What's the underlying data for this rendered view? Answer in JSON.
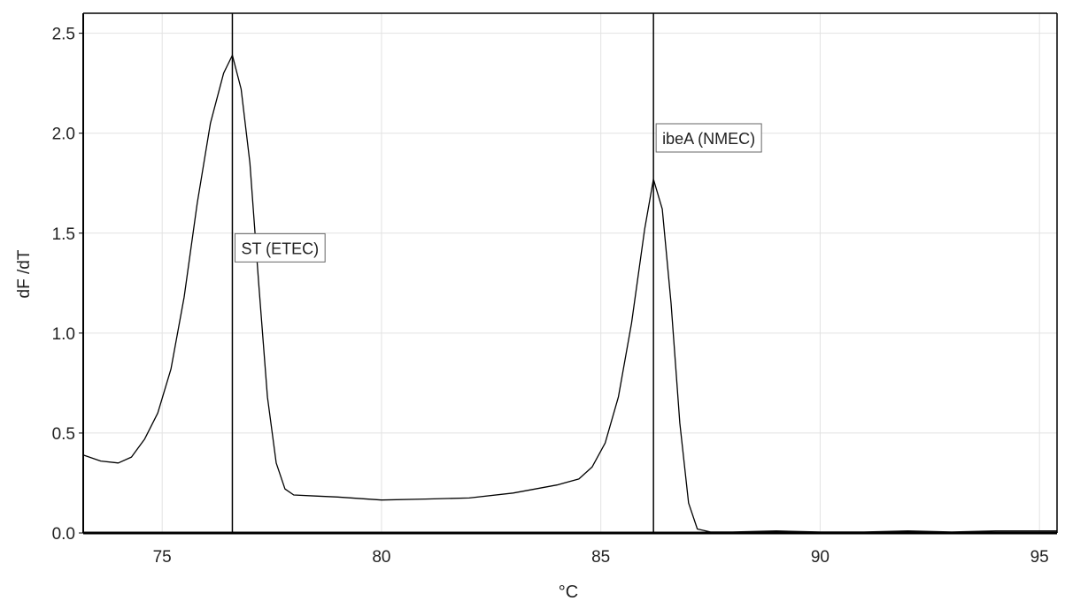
{
  "chart_data": {
    "type": "line",
    "title": "",
    "xlabel": "°C",
    "ylabel": "dF /dT",
    "xlim": [
      73.2,
      95.4
    ],
    "ylim": [
      0,
      2.6
    ],
    "xticks": [
      75,
      80,
      85,
      90,
      95
    ],
    "xtick_labels": [
      "75",
      "80",
      "85",
      "90",
      "95"
    ],
    "yticks": [
      0,
      0.5,
      1.0,
      1.5,
      2.0,
      2.5
    ],
    "ytick_labels": [
      "0.0",
      "0.5",
      "1.0",
      "1.5",
      "2.0",
      "2.5"
    ],
    "grid": true,
    "legend": "none",
    "series": [
      {
        "x": [
          73.2,
          73.6,
          74.0,
          74.3,
          74.6,
          74.9,
          75.2,
          75.5,
          75.8,
          76.1,
          76.4,
          76.6,
          76.8,
          77.0,
          77.2,
          77.4,
          77.6,
          77.8,
          78.0,
          78.5,
          79.0,
          80.0,
          81.0,
          82.0,
          83.0,
          84.0,
          84.5,
          84.8,
          85.1,
          85.4,
          85.7,
          86.0,
          86.2,
          86.4,
          86.6,
          86.8,
          87.0,
          87.2,
          87.5,
          88.0,
          89.0,
          90.0,
          91.0,
          92.0,
          93.0,
          94.0,
          95.4
        ],
        "y": [
          0.39,
          0.36,
          0.35,
          0.38,
          0.47,
          0.6,
          0.82,
          1.18,
          1.65,
          2.05,
          2.3,
          2.39,
          2.22,
          1.85,
          1.25,
          0.68,
          0.35,
          0.22,
          0.19,
          0.185,
          0.18,
          0.165,
          0.17,
          0.175,
          0.2,
          0.24,
          0.27,
          0.33,
          0.45,
          0.68,
          1.05,
          1.52,
          1.77,
          1.62,
          1.15,
          0.55,
          0.15,
          0.02,
          0.005,
          0.005,
          0.01,
          0.005,
          0.005,
          0.01,
          0.005,
          0.01,
          0.01
        ],
        "color": "#000000"
      }
    ],
    "markers": [
      {
        "x": 76.6,
        "label": "ST (ETEC)",
        "label_y": 1.4
      },
      {
        "x": 86.2,
        "label": "ibeA (NMEC)",
        "label_y": 1.95
      }
    ],
    "colors": {
      "background": "#ffffff",
      "grid": "#e2e2e2",
      "axis": "#000000",
      "line": "#000000"
    }
  }
}
